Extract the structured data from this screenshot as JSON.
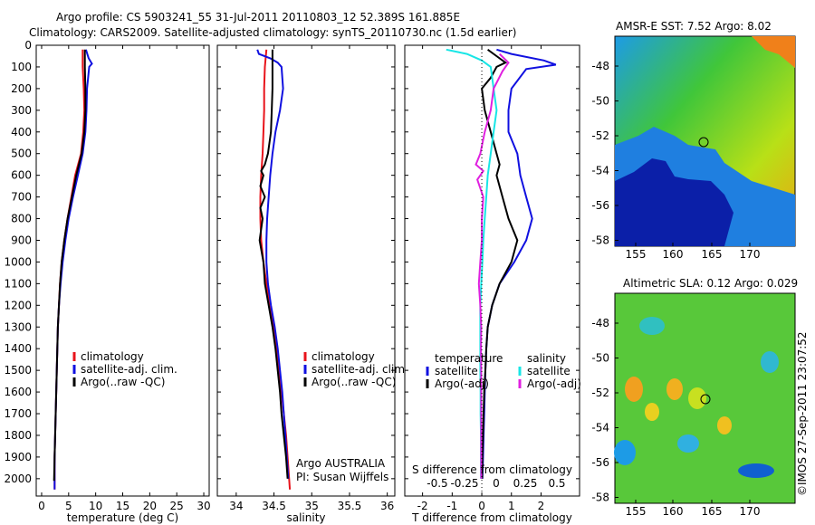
{
  "title_line1": "Argo profile: CS 5903241_55 31-Jul-2011 20110803_12 52.389S 161.885E",
  "title_line2": "Climatology: CARS2009. Satellite-adjusted climatology: synTS_20110730.nc (1.5d earlier)",
  "credit": "Argo AUSTRALIA",
  "pi": "PI: Susan Wijffels",
  "watermark": "©IMOS 27-Sep-2011 23:07:52",
  "colors": {
    "clim": "#e8131b",
    "sat": "#1010e0",
    "argo": "#000000",
    "sal_sat": "#18e6e6",
    "sal_argo": "#e020e0"
  },
  "chart_data": [
    {
      "type": "line",
      "xlabel": "temperature (deg C)",
      "ylabel": "",
      "xlim": [
        -1,
        31
      ],
      "ylim": [
        0,
        2080
      ],
      "xticks": [
        "0",
        "5",
        "10",
        "15",
        "20",
        "25",
        "30"
      ],
      "yticks": [
        "0",
        "100",
        "200",
        "300",
        "400",
        "500",
        "600",
        "700",
        "800",
        "900",
        "1000",
        "1100",
        "1200",
        "1300",
        "1400",
        "1500",
        "1600",
        "1700",
        "1800",
        "1900",
        "2000"
      ],
      "legend": [
        "climatology",
        "satellite-adj. clim.",
        "Argo(..raw -QC)"
      ],
      "series": [
        {
          "name": "climatology",
          "color": "clim",
          "points": [
            [
              7.6,
              20
            ],
            [
              7.6,
              100
            ],
            [
              7.8,
              200
            ],
            [
              7.9,
              300
            ],
            [
              7.7,
              400
            ],
            [
              7.3,
              500
            ],
            [
              6.2,
              600
            ],
            [
              5.5,
              700
            ],
            [
              4.8,
              800
            ],
            [
              4.2,
              900
            ],
            [
              3.7,
              1000
            ],
            [
              3.4,
              1100
            ],
            [
              3.2,
              1200
            ],
            [
              3,
              1300
            ],
            [
              2.9,
              1400
            ],
            [
              2.8,
              1500
            ],
            [
              2.7,
              1600
            ],
            [
              2.6,
              1700
            ],
            [
              2.5,
              1800
            ],
            [
              2.4,
              1900
            ],
            [
              2.4,
              2050
            ]
          ]
        },
        {
          "name": "satellite-adj. clim.",
          "color": "sat",
          "points": [
            [
              8.2,
              20
            ],
            [
              8.7,
              60
            ],
            [
              9.3,
              85
            ],
            [
              8.8,
              100
            ],
            [
              8.4,
              200
            ],
            [
              8.3,
              300
            ],
            [
              8.1,
              400
            ],
            [
              7.6,
              500
            ],
            [
              6.7,
              600
            ],
            [
              5.8,
              700
            ],
            [
              5,
              800
            ],
            [
              4.4,
              900
            ],
            [
              3.9,
              1000
            ],
            [
              3.5,
              1100
            ],
            [
              3.2,
              1200
            ],
            [
              3,
              1300
            ],
            [
              2.9,
              1400
            ],
            [
              2.8,
              1500
            ],
            [
              2.7,
              1600
            ],
            [
              2.6,
              1700
            ],
            [
              2.5,
              1800
            ],
            [
              2.4,
              1900
            ],
            [
              2.4,
              2050
            ]
          ]
        },
        {
          "name": "Argo(..raw -QC)",
          "color": "argo",
          "points": [
            [
              8,
              20
            ],
            [
              8,
              100
            ],
            [
              8.1,
              200
            ],
            [
              8.1,
              300
            ],
            [
              7.9,
              400
            ],
            [
              7.4,
              500
            ],
            [
              6.4,
              600
            ],
            [
              5.6,
              700
            ],
            [
              4.8,
              800
            ],
            [
              4.2,
              900
            ],
            [
              3.7,
              1000
            ],
            [
              3.4,
              1100
            ],
            [
              3.2,
              1200
            ],
            [
              3,
              1300
            ],
            [
              2.9,
              1400
            ],
            [
              2.8,
              1500
            ],
            [
              2.7,
              1600
            ],
            [
              2.6,
              1700
            ],
            [
              2.5,
              1800
            ],
            [
              2.4,
              1900
            ],
            [
              2.3,
              2010
            ]
          ]
        }
      ]
    },
    {
      "type": "line",
      "xlabel": "salinity",
      "xlim": [
        33.75,
        36.1
      ],
      "ylim": [
        0,
        2080
      ],
      "xticks": [
        "34",
        "34.5",
        "35",
        "35.5",
        "36"
      ],
      "legend": [
        "climatology",
        "satellite-adj. clim.",
        "Argo(..raw -QC)"
      ],
      "series": [
        {
          "name": "climatology",
          "color": "clim",
          "points": [
            [
              34.4,
              20
            ],
            [
              34.38,
              100
            ],
            [
              34.37,
              200
            ],
            [
              34.37,
              300
            ],
            [
              34.36,
              400
            ],
            [
              34.35,
              500
            ],
            [
              34.33,
              600
            ],
            [
              34.32,
              700
            ],
            [
              34.32,
              800
            ],
            [
              34.33,
              900
            ],
            [
              34.36,
              1000
            ],
            [
              34.4,
              1100
            ],
            [
              34.44,
              1200
            ],
            [
              34.49,
              1300
            ],
            [
              34.53,
              1400
            ],
            [
              34.56,
              1500
            ],
            [
              34.6,
              1600
            ],
            [
              34.63,
              1700
            ],
            [
              34.66,
              1800
            ],
            [
              34.68,
              1900
            ],
            [
              34.71,
              2050
            ]
          ]
        },
        {
          "name": "satellite-adj. clim.",
          "color": "sat",
          "points": [
            [
              34.28,
              20
            ],
            [
              34.3,
              40
            ],
            [
              34.45,
              60
            ],
            [
              34.55,
              80
            ],
            [
              34.6,
              100
            ],
            [
              34.62,
              200
            ],
            [
              34.58,
              300
            ],
            [
              34.52,
              400
            ],
            [
              34.48,
              500
            ],
            [
              34.45,
              600
            ],
            [
              34.43,
              700
            ],
            [
              34.41,
              800
            ],
            [
              34.4,
              900
            ],
            [
              34.4,
              1000
            ],
            [
              34.42,
              1100
            ],
            [
              34.46,
              1200
            ],
            [
              34.51,
              1300
            ],
            [
              34.55,
              1400
            ],
            [
              34.58,
              1500
            ],
            [
              34.61,
              1600
            ],
            [
              34.63,
              1700
            ],
            [
              34.65,
              1800
            ],
            [
              34.67,
              1900
            ],
            [
              34.69,
              2000
            ]
          ]
        },
        {
          "name": "Argo(..raw -QC)",
          "color": "argo",
          "points": [
            [
              34.48,
              20
            ],
            [
              34.48,
              100
            ],
            [
              34.48,
              200
            ],
            [
              34.47,
              300
            ],
            [
              34.46,
              400
            ],
            [
              34.42,
              500
            ],
            [
              34.38,
              550
            ],
            [
              34.33,
              580
            ],
            [
              34.36,
              600
            ],
            [
              34.32,
              650
            ],
            [
              34.38,
              700
            ],
            [
              34.32,
              750
            ],
            [
              34.35,
              800
            ],
            [
              34.31,
              900
            ],
            [
              34.36,
              1000
            ],
            [
              34.38,
              1100
            ],
            [
              34.43,
              1200
            ],
            [
              34.48,
              1300
            ],
            [
              34.52,
              1400
            ],
            [
              34.55,
              1500
            ],
            [
              34.58,
              1600
            ],
            [
              34.6,
              1700
            ],
            [
              34.63,
              1800
            ],
            [
              34.66,
              1900
            ],
            [
              34.68,
              2000
            ]
          ]
        }
      ]
    },
    {
      "type": "line",
      "xlabel": "T difference from climatology",
      "top_label": "S difference from climatology",
      "xlim": [
        -2.6,
        3.3
      ],
      "ylim": [
        0,
        2080
      ],
      "xticks": [
        "-2",
        "-1",
        "0",
        "1",
        "2"
      ],
      "top_ticks": [
        "-0.5",
        "-0.25",
        "0",
        "0.25",
        "0.5"
      ],
      "legend_headers": [
        "temperature",
        "salinity"
      ],
      "legend": [
        "satellite",
        "Argo(-adj)",
        "satellite",
        "Argo(-adj)"
      ],
      "series": [
        {
          "name": "satellite",
          "color": "sat",
          "points": [
            [
              0.5,
              20
            ],
            [
              1,
              40
            ],
            [
              2.1,
              70
            ],
            [
              2.5,
              90
            ],
            [
              1.5,
              110
            ],
            [
              1,
              200
            ],
            [
              0.9,
              300
            ],
            [
              0.9,
              400
            ],
            [
              1.2,
              500
            ],
            [
              1.3,
              600
            ],
            [
              1.5,
              700
            ],
            [
              1.7,
              800
            ],
            [
              1.5,
              900
            ],
            [
              1.1,
              1000
            ],
            [
              0.6,
              1100
            ],
            [
              0.35,
              1200
            ],
            [
              0.2,
              1300
            ],
            [
              0.15,
              1400
            ],
            [
              0.12,
              1500
            ],
            [
              0.1,
              1600
            ],
            [
              0.08,
              1700
            ],
            [
              0.06,
              1800
            ],
            [
              0.04,
              1900
            ],
            [
              0.02,
              2000
            ]
          ]
        },
        {
          "name": "Argo(-adj)",
          "color": "argo",
          "points": [
            [
              0.2,
              20
            ],
            [
              0.5,
              50
            ],
            [
              0.8,
              80
            ],
            [
              0.5,
              100
            ],
            [
              0.3,
              150
            ],
            [
              0,
              200
            ],
            [
              0.1,
              300
            ],
            [
              0.3,
              400
            ],
            [
              0.5,
              500
            ],
            [
              0.6,
              550
            ],
            [
              0.5,
              600
            ],
            [
              0.7,
              700
            ],
            [
              0.9,
              800
            ],
            [
              1.2,
              900
            ],
            [
              1,
              1000
            ],
            [
              0.6,
              1100
            ],
            [
              0.35,
              1200
            ],
            [
              0.2,
              1300
            ],
            [
              0.15,
              1400
            ],
            [
              0.12,
              1500
            ],
            [
              0.08,
              1600
            ],
            [
              0.06,
              1700
            ],
            [
              0.04,
              1800
            ],
            [
              0.02,
              1900
            ],
            [
              0.01,
              2000
            ]
          ]
        },
        {
          "name": "satellite",
          "color": "sal_sat",
          "points": [
            [
              -1.2,
              20
            ],
            [
              -0.5,
              40
            ],
            [
              0,
              70
            ],
            [
              0.3,
              100
            ],
            [
              0.4,
              200
            ],
            [
              0.5,
              300
            ],
            [
              0.4,
              400
            ],
            [
              0.3,
              500
            ],
            [
              0.2,
              600
            ],
            [
              0.15,
              700
            ],
            [
              0.1,
              800
            ],
            [
              0.05,
              900
            ],
            [
              0.02,
              1000
            ],
            [
              -0.02,
              1100
            ],
            [
              -0.05,
              1200
            ],
            [
              -0.05,
              1300
            ],
            [
              -0.05,
              1400
            ],
            [
              -0.05,
              1500
            ],
            [
              -0.04,
              1600
            ],
            [
              -0.04,
              1700
            ],
            [
              -0.03,
              1800
            ],
            [
              -0.03,
              1900
            ],
            [
              -0.03,
              2000
            ]
          ]
        },
        {
          "name": "Argo(-adj)",
          "color": "sal_argo",
          "points": [
            [
              0.6,
              40
            ],
            [
              0.9,
              80
            ],
            [
              0.7,
              120
            ],
            [
              0.4,
              200
            ],
            [
              0.3,
              300
            ],
            [
              0.1,
              400
            ],
            [
              -0.05,
              500
            ],
            [
              -0.2,
              550
            ],
            [
              0.05,
              580
            ],
            [
              -0.15,
              620
            ],
            [
              0.05,
              700
            ],
            [
              0,
              800
            ],
            [
              0,
              900
            ],
            [
              -0.05,
              1000
            ],
            [
              -0.1,
              1100
            ],
            [
              -0.05,
              1200
            ],
            [
              -0.02,
              1300
            ],
            [
              -0.03,
              1400
            ],
            [
              -0.02,
              1500
            ],
            [
              -0.02,
              1600
            ],
            [
              -0.02,
              1700
            ],
            [
              -0.02,
              1800
            ],
            [
              -0.02,
              1900
            ],
            [
              -0.02,
              2000
            ]
          ]
        }
      ]
    },
    {
      "type": "heatmap",
      "title": "AMSR-E SST: 7.52 Argo: 8.02",
      "xticks": [
        "155",
        "160",
        "165",
        "170"
      ],
      "yticks": [
        "-48",
        "-50",
        "-52",
        "-54",
        "-56",
        "-58"
      ]
    },
    {
      "type": "heatmap",
      "title": "Altimetric SLA: 0.12 Argo: 0.029",
      "xticks": [
        "155",
        "160",
        "165",
        "170"
      ],
      "yticks": [
        "-48",
        "-50",
        "-52",
        "-54",
        "-56",
        "-58"
      ]
    }
  ]
}
